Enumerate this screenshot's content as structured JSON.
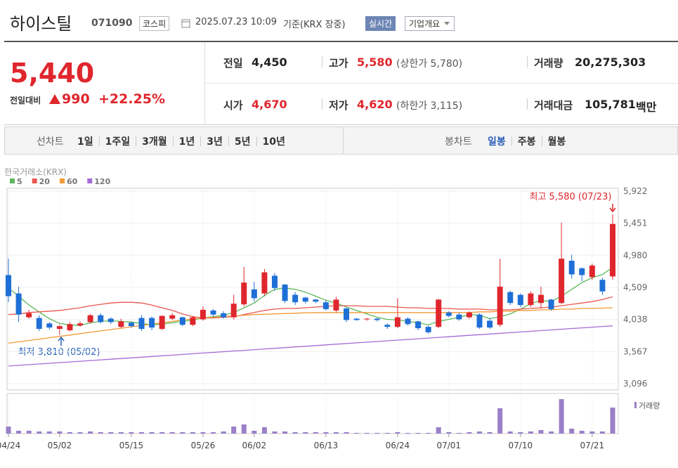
{
  "header": {
    "name": "하이스틸",
    "code": "071090",
    "market": "코스피",
    "datetime": "2025.07.23 10:09",
    "basis": "기준(KRX 장중)",
    "realtime": "실시간",
    "company": "기업개요"
  },
  "quote": {
    "price": "5,440",
    "change_label": "전일대비",
    "change": "990",
    "change_pct": "+22.25%",
    "prev_label": "전일",
    "prev": "4,450",
    "high_label": "고가",
    "high": "5,580",
    "upper_limit": "(상한가 5,780)",
    "volume_label": "거래량",
    "volume": "20,275,303",
    "open_label": "시가",
    "open": "4,670",
    "low_label": "저가",
    "low": "4,620",
    "lower_limit": "(하한가 3,115)",
    "amount_label": "거래대금",
    "amount": "105,781",
    "amount_unit": "백만"
  },
  "tabs": {
    "line_label": "선차트",
    "line_items": [
      "1일",
      "1주일",
      "3개월",
      "1년",
      "3년",
      "5년",
      "10년"
    ],
    "candle_label": "봉차트",
    "candle_items": [
      "일봉",
      "주봉",
      "월봉"
    ]
  },
  "chart_data": {
    "type": "candlestick",
    "source": "한국거래소(KRX)",
    "volume_name": "거래량",
    "annotations": [
      "최고 5,580 (07/23)",
      "최저 3,810 (05/02)"
    ],
    "ylim": [
      3003,
      5963
    ],
    "yticks": [
      {
        "value": 5922,
        "label": "5,922"
      },
      {
        "value": 5451,
        "label": "5,451"
      },
      {
        "value": 4980,
        "label": "4,980"
      },
      {
        "value": 4509,
        "label": "4,509"
      },
      {
        "value": 4038,
        "label": "4,038"
      },
      {
        "value": 3567,
        "label": "3,567"
      },
      {
        "value": 3096,
        "label": "3,096"
      }
    ],
    "categories": [
      "04/24",
      null,
      null,
      null,
      null,
      "05/02",
      null,
      null,
      null,
      null,
      null,
      null,
      "05/15",
      null,
      null,
      null,
      null,
      null,
      null,
      "05/26",
      null,
      null,
      null,
      null,
      "06/02",
      null,
      null,
      null,
      null,
      null,
      null,
      "06/13",
      null,
      null,
      null,
      null,
      null,
      null,
      "06/24",
      null,
      null,
      null,
      null,
      "07/01",
      null,
      null,
      null,
      null,
      null,
      null,
      "07/10",
      null,
      null,
      null,
      null,
      null,
      null,
      "07/21",
      null,
      null
    ],
    "open": [
      4690,
      4420,
      4070,
      4060,
      3980,
      3900,
      3880,
      3950,
      4000,
      4100,
      4050,
      3930,
      3990,
      4060,
      4060,
      3900,
      4050,
      4070,
      3960,
      4040,
      4170,
      4130,
      4070,
      4260,
      4480,
      4420,
      4680,
      4550,
      4400,
      4360,
      4330,
      4290,
      4170,
      4200,
      4050,
      4040,
      4050,
      3960,
      3930,
      4050,
      4010,
      3930,
      3930,
      4140,
      4110,
      4070,
      4110,
      4020,
      3960,
      4440,
      4400,
      4250,
      4280,
      4330,
      4280,
      4900,
      4790,
      4660,
      4620,
      4670
    ],
    "high": [
      4930,
      4520,
      4180,
      4100,
      4000,
      3960,
      4000,
      4010,
      4120,
      4130,
      4070,
      4050,
      4010,
      4100,
      4080,
      4100,
      4130,
      4080,
      4090,
      4230,
      4190,
      4160,
      4400,
      4810,
      4590,
      4780,
      4720,
      4560,
      4440,
      4370,
      4340,
      4320,
      4370,
      4210,
      4060,
      4060,
      4060,
      3980,
      4350,
      4070,
      4020,
      3950,
      4340,
      4160,
      4140,
      4160,
      4130,
      4060,
      4930,
      4460,
      4420,
      4450,
      4520,
      4340,
      5460,
      4990,
      4800,
      4860,
      4650,
      5580
    ],
    "low": [
      4290,
      4000,
      4050,
      3870,
      3890,
      3810,
      3860,
      3930,
      3980,
      3980,
      3970,
      3910,
      3920,
      3870,
      3880,
      3880,
      4030,
      3940,
      3940,
      4020,
      4080,
      4050,
      4040,
      4230,
      4300,
      4380,
      4460,
      4280,
      4250,
      4270,
      4280,
      4170,
      4140,
      4000,
      4020,
      4020,
      4010,
      3900,
      3910,
      3950,
      3880,
      3830,
      3910,
      4070,
      4020,
      4050,
      3900,
      3900,
      3930,
      4250,
      4220,
      4220,
      4200,
      4170,
      4260,
      4640,
      4600,
      4620,
      4400,
      4620
    ],
    "close": [
      4380,
      4110,
      4130,
      3900,
      3920,
      3940,
      3970,
      3980,
      4100,
      4000,
      4000,
      4010,
      3940,
      3900,
      3920,
      4090,
      4100,
      3960,
      4070,
      4180,
      4110,
      4070,
      4270,
      4580,
      4350,
      4730,
      4500,
      4310,
      4290,
      4300,
      4300,
      4190,
      4330,
      4030,
      4030,
      4050,
      4030,
      3930,
      4070,
      3970,
      3910,
      3850,
      4330,
      4090,
      4040,
      4140,
      3920,
      3920,
      4520,
      4280,
      4250,
      4420,
      4400,
      4190,
      4930,
      4700,
      4690,
      4830,
      4450,
      5440
    ],
    "volume": [
      5480000,
      2192000,
      2192000,
      1644000,
      1644000,
      1644000,
      1096000,
      1096000,
      1644000,
      1096000,
      1096000,
      1096000,
      1096000,
      1096000,
      1096000,
      1096000,
      1096000,
      1096000,
      1096000,
      1096000,
      1096000,
      1644000,
      5480000,
      7124000,
      2192000,
      4932000,
      1644000,
      1644000,
      1096000,
      1096000,
      1096000,
      1096000,
      1096000,
      1096000,
      548000,
      548000,
      548000,
      548000,
      1096000,
      548000,
      548000,
      548000,
      4932000,
      1096000,
      548000,
      1096000,
      1644000,
      1096000,
      19728000,
      1644000,
      1096000,
      1644000,
      2740000,
      1644000,
      26852000,
      3836000,
      2192000,
      1644000,
      1644000,
      20275303
    ],
    "volume_color": "#9b7fc9",
    "up_color": "#e0262d",
    "down_color": "#1e6fd6",
    "series": [
      {
        "name": "5",
        "color": "#5cb85c",
        "values": [
          4500,
          4380,
          4250,
          4150,
          4050,
          3980,
          3960,
          3950,
          3990,
          4010,
          4020,
          4010,
          4000,
          3980,
          3960,
          3970,
          3990,
          4010,
          4030,
          4060,
          4080,
          4100,
          4140,
          4210,
          4280,
          4390,
          4480,
          4500,
          4480,
          4440,
          4380,
          4320,
          4280,
          4220,
          4170,
          4120,
          4070,
          4040,
          4030,
          4010,
          3990,
          3960,
          4010,
          4040,
          4070,
          4110,
          4100,
          4050,
          4080,
          4120,
          4190,
          4270,
          4320,
          4300,
          4380,
          4480,
          4580,
          4650,
          4700,
          4800
        ]
      },
      {
        "name": "20",
        "color": "#e8574e",
        "values": [
          4110,
          4120,
          4140,
          4150,
          4160,
          4170,
          4190,
          4210,
          4240,
          4260,
          4280,
          4290,
          4290,
          4280,
          4250,
          4210,
          4170,
          4120,
          4080,
          4060,
          4060,
          4070,
          4080,
          4110,
          4140,
          4170,
          4190,
          4200,
          4200,
          4210,
          4220,
          4230,
          4240,
          4240,
          4240,
          4230,
          4230,
          4230,
          4220,
          4210,
          4210,
          4200,
          4200,
          4200,
          4190,
          4190,
          4190,
          4180,
          4180,
          4180,
          4190,
          4200,
          4210,
          4220,
          4240,
          4260,
          4280,
          4300,
          4330,
          4370
        ]
      },
      {
        "name": "60",
        "color": "#f39a34",
        "values": [
          3690,
          3710,
          3730,
          3750,
          3770,
          3790,
          3810,
          3830,
          3850,
          3870,
          3890,
          3910,
          3930,
          3950,
          3970,
          3990,
          4010,
          4030,
          4045,
          4060,
          4070,
          4080,
          4090,
          4100,
          4110,
          4115,
          4120,
          4125,
          4130,
          4135,
          4140,
          4140,
          4140,
          4140,
          4140,
          4140,
          4140,
          4140,
          4140,
          4140,
          4140,
          4140,
          4140,
          4140,
          4140,
          4140,
          4150,
          4150,
          4160,
          4160,
          4170,
          4170,
          4180,
          4180,
          4190,
          4190,
          4200,
          4200,
          4205,
          4210
        ]
      },
      {
        "name": "120",
        "color": "#a56bd6",
        "values": [
          3355,
          3365,
          3375,
          3385,
          3395,
          3405,
          3415,
          3425,
          3435,
          3445,
          3455,
          3465,
          3475,
          3485,
          3495,
          3505,
          3515,
          3525,
          3535,
          3545,
          3555,
          3565,
          3575,
          3585,
          3595,
          3605,
          3615,
          3625,
          3635,
          3645,
          3655,
          3665,
          3675,
          3685,
          3695,
          3705,
          3715,
          3725,
          3735,
          3745,
          3755,
          3765,
          3775,
          3785,
          3795,
          3805,
          3815,
          3825,
          3835,
          3845,
          3855,
          3865,
          3875,
          3885,
          3895,
          3905,
          3915,
          3925,
          3935,
          3945
        ]
      }
    ]
  }
}
